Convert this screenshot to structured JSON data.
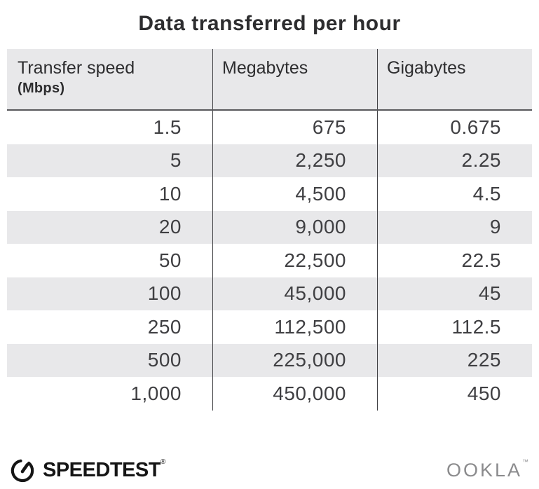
{
  "page": {
    "title": "Data transferred per hour"
  },
  "chart_data": {
    "type": "table",
    "title": "Data transferred per hour",
    "columns": [
      "Transfer speed (Mbps)",
      "Megabytes",
      "Gigabytes"
    ],
    "rows": [
      [
        "1.5",
        "675",
        "0.675"
      ],
      [
        "5",
        "2,250",
        "2.25"
      ],
      [
        "10",
        "4,500",
        "4.5"
      ],
      [
        "20",
        "9,000",
        "9"
      ],
      [
        "50",
        "22,500",
        "22.5"
      ],
      [
        "100",
        "45,000",
        "45"
      ],
      [
        "250",
        "112,500",
        "112.5"
      ],
      [
        "500",
        "225,000",
        "225"
      ],
      [
        "1,000",
        "450,000",
        "450"
      ]
    ],
    "transfer_speed_mbps": [
      1.5,
      5,
      10,
      20,
      50,
      100,
      250,
      500,
      1000
    ],
    "megabytes_per_hour": [
      675,
      2250,
      4500,
      9000,
      22500,
      45000,
      112500,
      225000,
      450000
    ],
    "gigabytes_per_hour": [
      0.675,
      2.25,
      4.5,
      9,
      22.5,
      45,
      112.5,
      225,
      450
    ],
    "layout": {
      "striped_rows": "alternating white / light gray starting white",
      "value_alignment": "right"
    }
  },
  "table": {
    "header": {
      "col1_line1": "Transfer speed",
      "col1_line2": "(Mbps)",
      "col2": "Megabytes",
      "col3": "Gigabytes"
    }
  },
  "footer": {
    "speedtest_label": "SPEEDTEST",
    "speedtest_mark": "®",
    "ookla_label": "OOKLA",
    "ookla_mark": "™"
  },
  "colors": {
    "stripe": "#e8e8ea",
    "header_bg": "#e8e8ea",
    "text_dark": "#2d2d2f",
    "number_text": "#3f3f42",
    "divider": "#414144",
    "header_underline": "#58585b",
    "ookla_gray": "#8b8b8d",
    "logo_black": "#151515"
  }
}
